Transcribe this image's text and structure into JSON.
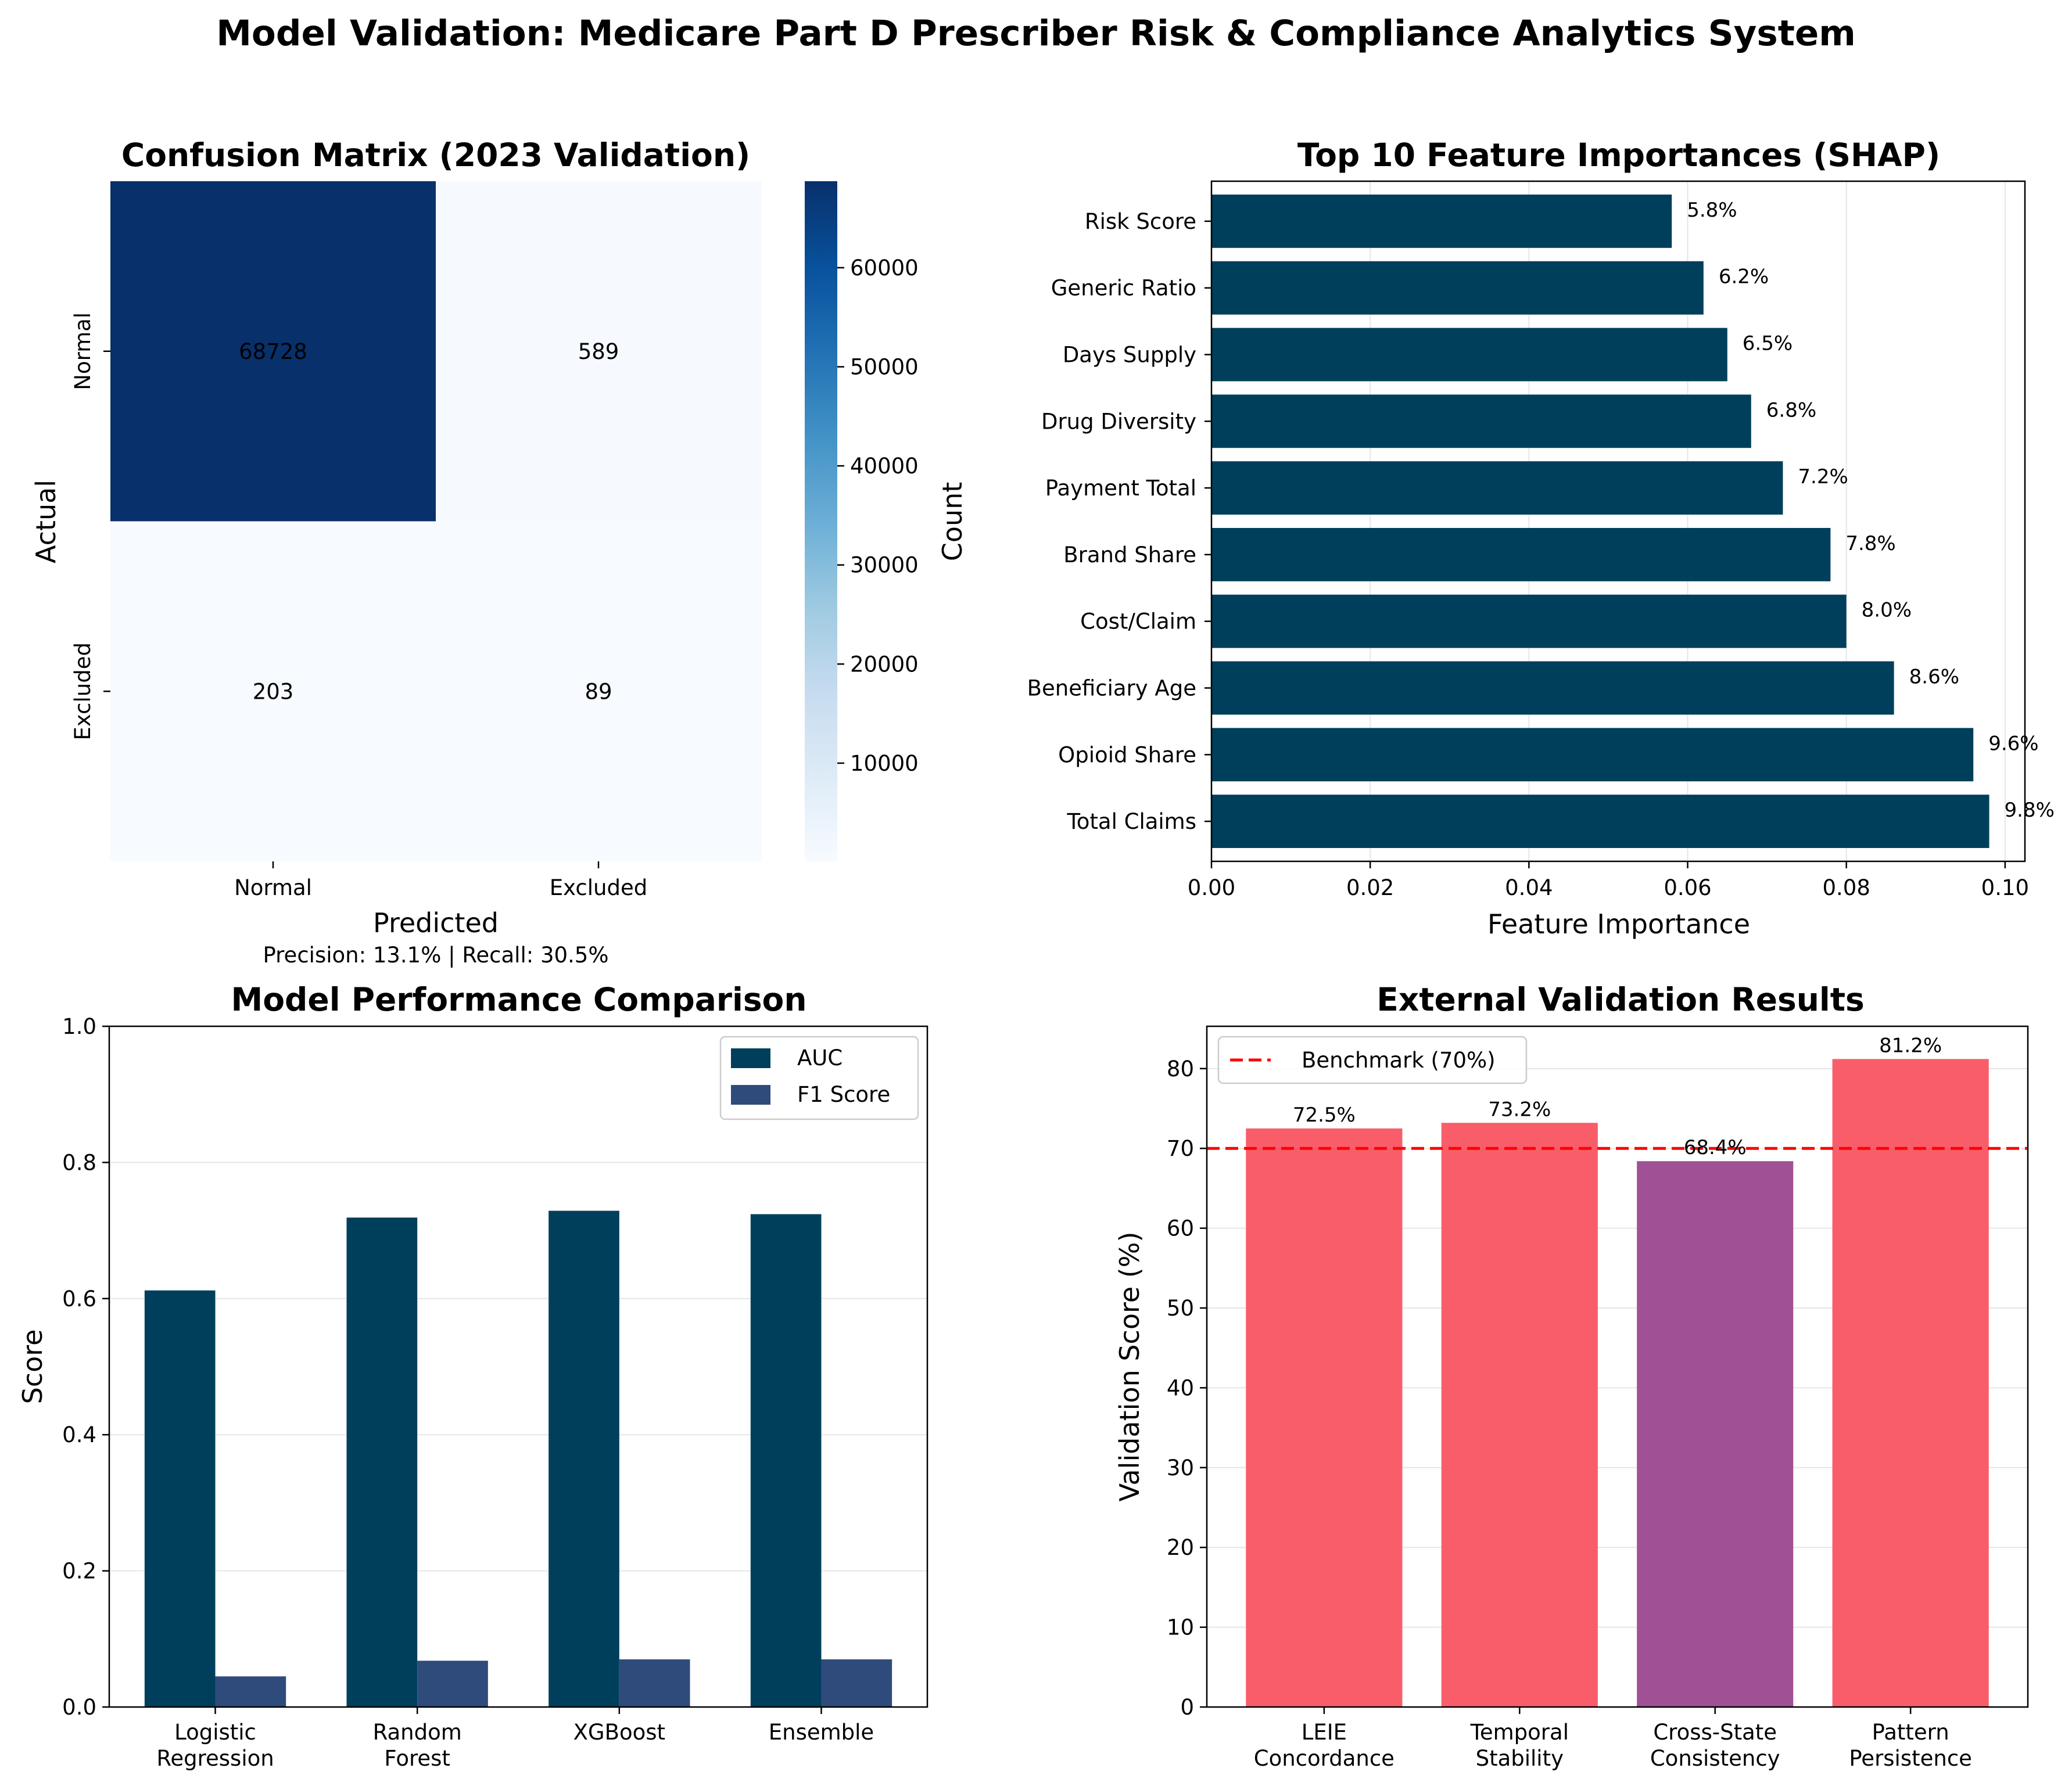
{
  "figure": {
    "title": "Model Validation: Medicare Part D Prescriber Risk & Compliance Analytics System"
  },
  "chart_data": [
    {
      "type": "heatmap",
      "title": "Confusion Matrix (2023 Validation)",
      "xlabel": "Predicted",
      "ylabel": "Actual",
      "x_categories": [
        "Normal",
        "Excluded"
      ],
      "y_categories": [
        "Normal",
        "Excluded"
      ],
      "values": [
        [
          68728,
          589
        ],
        [
          203,
          89
        ]
      ],
      "cell_labels": [
        [
          "68728",
          "589"
        ],
        [
          "203",
          "89"
        ]
      ],
      "colormap": "Blues",
      "colorbar": {
        "label": "Count",
        "range": [
          89,
          68728
        ],
        "ticks": [
          10000,
          20000,
          30000,
          40000,
          50000,
          60000
        ],
        "tick_labels": [
          "10000",
          "20000",
          "30000",
          "40000",
          "50000",
          "60000"
        ]
      },
      "annotation": "Precision: 13.1% | Recall: 30.5%"
    },
    {
      "type": "bar",
      "orientation": "horizontal",
      "title": "Top 10 Feature Importances (SHAP)",
      "xlabel": "Feature Importance",
      "ylabel": "",
      "categories": [
        "Total Claims",
        "Opioid Share",
        "Beneficiary Age",
        "Cost/Claim",
        "Brand Share",
        "Payment Total",
        "Drug Diversity",
        "Days Supply",
        "Generic Ratio",
        "Risk Score"
      ],
      "values": [
        0.098,
        0.096,
        0.086,
        0.08,
        0.078,
        0.072,
        0.068,
        0.065,
        0.062,
        0.058
      ],
      "value_labels": [
        "9.8%",
        "9.6%",
        "8.6%",
        "8.0%",
        "7.8%",
        "7.2%",
        "6.8%",
        "6.5%",
        "6.2%",
        "5.8%"
      ],
      "xlim": [
        0,
        0.1025
      ],
      "xticks": [
        0.0,
        0.02,
        0.04,
        0.06,
        0.08,
        0.1
      ],
      "xtick_labels": [
        "0.00",
        "0.02",
        "0.04",
        "0.06",
        "0.08",
        "0.10"
      ],
      "grid": "x",
      "color": "#003f5c"
    },
    {
      "type": "bar",
      "title": "Model Performance Comparison",
      "xlabel": "",
      "ylabel": "Score",
      "categories": [
        "Logistic\nRegression",
        "Random\nForest",
        "XGBoost",
        "Ensemble"
      ],
      "series": [
        {
          "name": "AUC",
          "values": [
            0.612,
            0.719,
            0.729,
            0.724
          ],
          "color": "#003f5c"
        },
        {
          "name": "F1 Score",
          "values": [
            0.045,
            0.068,
            0.07,
            0.07
          ],
          "color": "#2f4b7c"
        }
      ],
      "ylim": [
        0,
        1.0
      ],
      "yticks": [
        0.0,
        0.2,
        0.4,
        0.6,
        0.8,
        1.0
      ],
      "ytick_labels": [
        "0.0",
        "0.2",
        "0.4",
        "0.6",
        "0.8",
        "1.0"
      ],
      "legend": "upper-right",
      "grid": "y"
    },
    {
      "type": "bar",
      "title": "External Validation Results",
      "xlabel": "",
      "ylabel": "Validation Score (%)",
      "categories": [
        "LEIE\nConcordance",
        "Temporal\nStability",
        "Cross-State\nConsistency",
        "Pattern\nPersistence"
      ],
      "values": [
        72.5,
        73.2,
        68.4,
        81.2
      ],
      "value_labels": [
        "72.5%",
        "73.2%",
        "68.4%",
        "81.2%"
      ],
      "colors": [
        "#f95d6a",
        "#f95d6a",
        "#a05195",
        "#f95d6a"
      ],
      "benchmark": {
        "name": "Benchmark (70%)",
        "value": 70,
        "color": "#ff0000"
      },
      "ylim": [
        0,
        85.3
      ],
      "yticks": [
        0,
        10,
        20,
        30,
        40,
        50,
        60,
        70,
        80
      ],
      "ytick_labels": [
        "0",
        "10",
        "20",
        "30",
        "40",
        "50",
        "60",
        "70",
        "80"
      ],
      "legend": "upper-left",
      "grid": "y"
    }
  ]
}
